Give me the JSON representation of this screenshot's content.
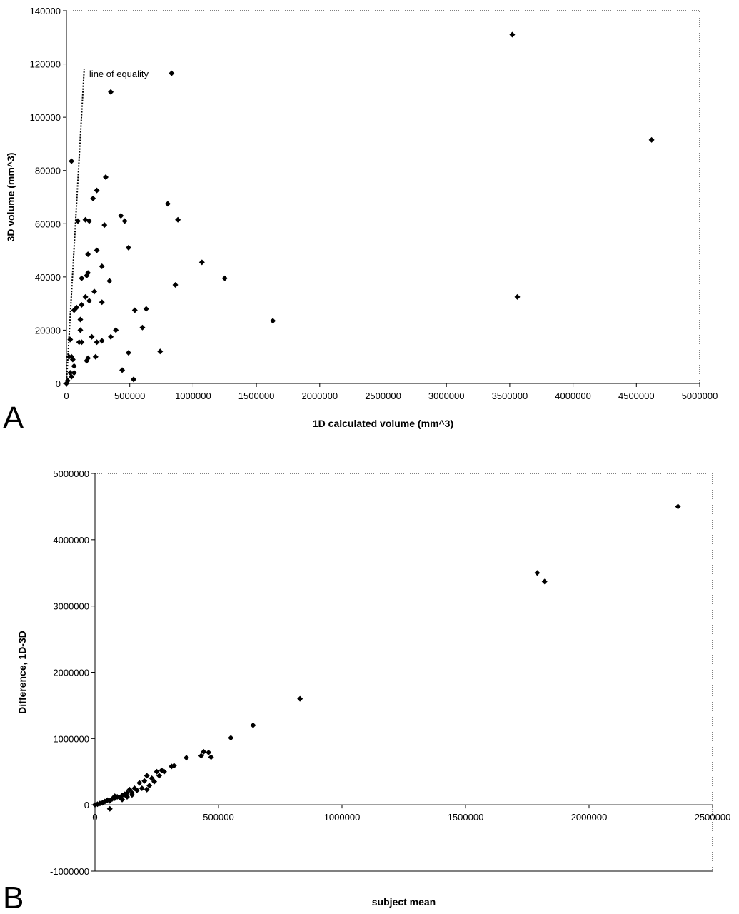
{
  "chart_data": [
    {
      "panel": "A",
      "type": "scatter",
      "title": "",
      "xlabel": "1D calculated volume (mm^3)",
      "ylabel": "3D volume (mm^3)",
      "xlim": [
        0,
        5000000
      ],
      "ylim": [
        0,
        140000
      ],
      "xticks": [
        0,
        500000,
        1000000,
        1500000,
        2000000,
        2500000,
        3000000,
        3500000,
        4000000,
        4500000,
        5000000
      ],
      "yticks": [
        0,
        20000,
        40000,
        60000,
        80000,
        100000,
        120000,
        140000
      ],
      "grid": false,
      "marker": "diamond",
      "annotations": [
        {
          "text": "line of equality",
          "x": 180000,
          "y": 115000
        }
      ],
      "reference_line": {
        "name": "line of equality",
        "style": "dotted",
        "points": [
          [
            0,
            0
          ],
          [
            140000,
            118000
          ]
        ]
      },
      "series": [
        {
          "points": [
            [
              3520000,
              131000
            ],
            [
              4620000,
              91500
            ],
            [
              3560000,
              32500
            ],
            [
              1630000,
              23500
            ],
            [
              830000,
              116500
            ],
            [
              350000,
              109500
            ],
            [
              40000,
              83500
            ],
            [
              310000,
              77500
            ],
            [
              240000,
              72500
            ],
            [
              210000,
              69500
            ],
            [
              800000,
              67500
            ],
            [
              430000,
              63000
            ],
            [
              460000,
              61000
            ],
            [
              880000,
              61500
            ],
            [
              150000,
              61500
            ],
            [
              180000,
              61000
            ],
            [
              90000,
              61000
            ],
            [
              300000,
              59500
            ],
            [
              240000,
              50000
            ],
            [
              490000,
              51000
            ],
            [
              170000,
              48500
            ],
            [
              1070000,
              45500
            ],
            [
              280000,
              44000
            ],
            [
              170000,
              41500
            ],
            [
              160000,
              40500
            ],
            [
              120000,
              39500
            ],
            [
              340000,
              38500
            ],
            [
              1250000,
              39500
            ],
            [
              860000,
              37000
            ],
            [
              220000,
              34500
            ],
            [
              150000,
              32500
            ],
            [
              180000,
              31000
            ],
            [
              280000,
              30500
            ],
            [
              120000,
              29500
            ],
            [
              80000,
              28500
            ],
            [
              60000,
              27500
            ],
            [
              540000,
              27500
            ],
            [
              630000,
              28000
            ],
            [
              110000,
              24000
            ],
            [
              600000,
              21000
            ],
            [
              110000,
              20000
            ],
            [
              390000,
              20000
            ],
            [
              200000,
              17500
            ],
            [
              350000,
              17500
            ],
            [
              30000,
              16500
            ],
            [
              100000,
              15500
            ],
            [
              120000,
              15500
            ],
            [
              240000,
              15500
            ],
            [
              280000,
              16000
            ],
            [
              740000,
              12000
            ],
            [
              490000,
              11500
            ],
            [
              230000,
              10000
            ],
            [
              170000,
              9500
            ],
            [
              160000,
              8500
            ],
            [
              20000,
              10000
            ],
            [
              40000,
              10000
            ],
            [
              50000,
              9000
            ],
            [
              60000,
              6500
            ],
            [
              30000,
              4000
            ],
            [
              60000,
              4000
            ],
            [
              40000,
              2500
            ],
            [
              440000,
              5000
            ],
            [
              530000,
              1500
            ],
            [
              10000,
              1000
            ],
            [
              0,
              0
            ]
          ]
        }
      ]
    },
    {
      "panel": "B",
      "type": "scatter",
      "title": "",
      "xlabel": "subject mean",
      "ylabel": "Difference, 1D-3D",
      "xlim": [
        0,
        2500000
      ],
      "ylim": [
        -1000000,
        5000000
      ],
      "xticks": [
        0,
        500000,
        1000000,
        1500000,
        2000000,
        2500000
      ],
      "yticks": [
        -1000000,
        0,
        1000000,
        2000000,
        3000000,
        4000000,
        5000000
      ],
      "grid": false,
      "marker": "diamond",
      "series": [
        {
          "points": [
            [
              2360000,
              4500000
            ],
            [
              1790000,
              3500000
            ],
            [
              1820000,
              3370000
            ],
            [
              830000,
              1600000
            ],
            [
              640000,
              1200000
            ],
            [
              550000,
              1010000
            ],
            [
              440000,
              800000
            ],
            [
              460000,
              790000
            ],
            [
              470000,
              720000
            ],
            [
              430000,
              740000
            ],
            [
              370000,
              710000
            ],
            [
              320000,
              590000
            ],
            [
              310000,
              580000
            ],
            [
              270000,
              520000
            ],
            [
              250000,
              500000
            ],
            [
              280000,
              500000
            ],
            [
              260000,
              440000
            ],
            [
              230000,
              400000
            ],
            [
              210000,
              440000
            ],
            [
              200000,
              360000
            ],
            [
              240000,
              350000
            ],
            [
              180000,
              330000
            ],
            [
              190000,
              250000
            ],
            [
              160000,
              250000
            ],
            [
              170000,
              220000
            ],
            [
              140000,
              230000
            ],
            [
              150000,
              180000
            ],
            [
              130000,
              180000
            ],
            [
              120000,
              160000
            ],
            [
              110000,
              140000
            ],
            [
              100000,
              110000
            ],
            [
              90000,
              120000
            ],
            [
              80000,
              130000
            ],
            [
              80000,
              100000
            ],
            [
              70000,
              90000
            ],
            [
              60000,
              60000
            ],
            [
              50000,
              70000
            ],
            [
              40000,
              50000
            ],
            [
              30000,
              30000
            ],
            [
              20000,
              20000
            ],
            [
              10000,
              10000
            ],
            [
              0,
              0
            ],
            [
              60000,
              -60000
            ],
            [
              110000,
              80000
            ],
            [
              130000,
              120000
            ],
            [
              150000,
              150000
            ],
            [
              210000,
              230000
            ],
            [
              220000,
              290000
            ]
          ]
        }
      ]
    }
  ],
  "panel_labels": {
    "a": "A",
    "b": "B"
  }
}
